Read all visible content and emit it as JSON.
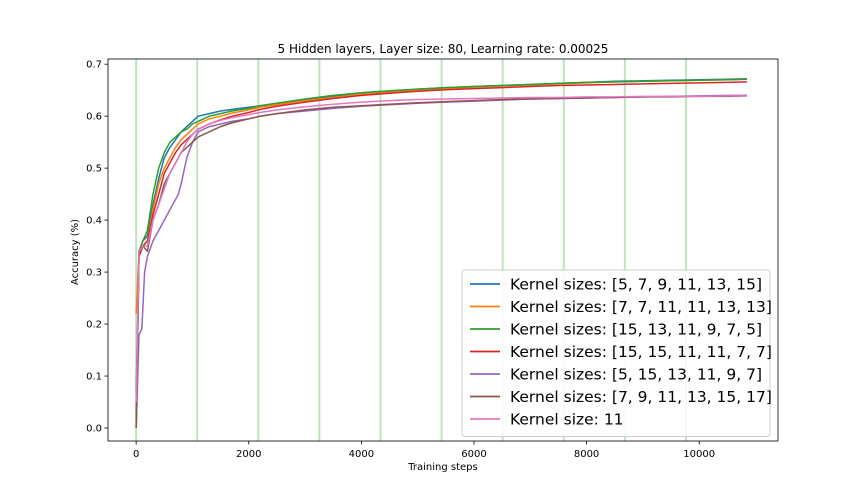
{
  "chart_data": {
    "type": "line",
    "title": "5 Hidden layers, Layer size: 80, Learning rate: 0.00025",
    "xlabel": "Training steps",
    "ylabel": "Accuracy (%)",
    "xlim": [
      -500,
      11400
    ],
    "ylim": [
      -0.025,
      0.71
    ],
    "xticks": [
      0,
      2000,
      4000,
      6000,
      8000,
      10000
    ],
    "xtick_labels": [
      "0",
      "2000",
      "4000",
      "6000",
      "8000",
      "10000"
    ],
    "yticks": [
      0.0,
      0.1,
      0.2,
      0.3,
      0.4,
      0.5,
      0.6,
      0.7
    ],
    "ytick_labels": [
      "0.0",
      "0.1",
      "0.2",
      "0.3",
      "0.4",
      "0.5",
      "0.6",
      "0.7"
    ],
    "grid": false,
    "legend_position": "lower-right",
    "vertical_lines": {
      "color": "#2ca02c",
      "x": [
        0,
        1085,
        2170,
        3255,
        4340,
        5425,
        6510,
        7595,
        8680,
        9765
      ]
    },
    "series": [
      {
        "name": "Kernel sizes: [5, 7, 9, 11, 13, 15]",
        "color": "#1f77b4",
        "x": [
          0,
          50,
          120,
          200,
          300,
          400,
          500,
          600,
          700,
          800,
          900,
          1000,
          1100,
          1300,
          1500,
          1700,
          2000,
          2200,
          2500,
          3000,
          3500,
          4000,
          4500,
          5000,
          5500,
          6000,
          6500,
          7000,
          7500,
          8000,
          8500,
          9000,
          9500,
          10000,
          10500,
          10850
        ],
        "y": [
          0.0,
          0.34,
          0.36,
          0.37,
          0.43,
          0.48,
          0.52,
          0.54,
          0.555,
          0.57,
          0.58,
          0.59,
          0.6,
          0.605,
          0.61,
          0.613,
          0.617,
          0.62,
          0.625,
          0.632,
          0.638,
          0.645,
          0.648,
          0.652,
          0.655,
          0.657,
          0.659,
          0.661,
          0.663,
          0.665,
          0.667,
          0.668,
          0.669,
          0.67,
          0.671,
          0.672
        ]
      },
      {
        "name": "Kernel sizes: [7, 7, 11, 11, 13, 13]",
        "color": "#ff7f0e",
        "x": [
          0,
          50,
          120,
          200,
          300,
          400,
          500,
          600,
          700,
          800,
          900,
          1000,
          1100,
          1300,
          1500,
          1700,
          2000,
          2200,
          2500,
          3000,
          3500,
          4000,
          4500,
          5000,
          5500,
          6000,
          6500,
          7000,
          7500,
          8000,
          8500,
          9000,
          9500,
          10000,
          10500,
          10850
        ],
        "y": [
          0.22,
          0.34,
          0.35,
          0.36,
          0.42,
          0.47,
          0.5,
          0.52,
          0.54,
          0.555,
          0.565,
          0.575,
          0.585,
          0.595,
          0.6,
          0.606,
          0.612,
          0.617,
          0.622,
          0.63,
          0.636,
          0.642,
          0.646,
          0.65,
          0.653,
          0.656,
          0.658,
          0.66,
          0.662,
          0.664,
          0.666,
          0.667,
          0.668,
          0.669,
          0.67,
          0.671
        ]
      },
      {
        "name": "Kernel sizes: [15, 13, 11, 9, 7, 5]",
        "color": "#2ca02c",
        "x": [
          0,
          50,
          120,
          200,
          300,
          400,
          500,
          600,
          700,
          800,
          900,
          1000,
          1100,
          1300,
          1500,
          1700,
          2000,
          2200,
          2500,
          3000,
          3500,
          4000,
          4500,
          5000,
          5500,
          6000,
          6500,
          7000,
          7500,
          8000,
          8500,
          9000,
          9500,
          10000,
          10500,
          10850
        ],
        "y": [
          0.07,
          0.34,
          0.36,
          0.38,
          0.45,
          0.5,
          0.53,
          0.55,
          0.56,
          0.57,
          0.575,
          0.585,
          0.59,
          0.6,
          0.605,
          0.61,
          0.615,
          0.62,
          0.625,
          0.633,
          0.64,
          0.645,
          0.649,
          0.652,
          0.655,
          0.657,
          0.659,
          0.661,
          0.663,
          0.665,
          0.666,
          0.667,
          0.668,
          0.669,
          0.67,
          0.671
        ]
      },
      {
        "name": "Kernel sizes: [15, 15, 11, 11, 7, 7]",
        "color": "#d62728",
        "x": [
          0,
          50,
          120,
          200,
          300,
          400,
          500,
          600,
          700,
          800,
          900,
          1000,
          1100,
          1300,
          1500,
          1700,
          2000,
          2200,
          2500,
          3000,
          3500,
          4000,
          4500,
          5000,
          5500,
          6000,
          6500,
          7000,
          7500,
          8000,
          8500,
          9000,
          9500,
          10000,
          10500,
          10850
        ],
        "y": [
          0.0,
          0.33,
          0.35,
          0.36,
          0.41,
          0.45,
          0.49,
          0.51,
          0.53,
          0.545,
          0.555,
          0.565,
          0.575,
          0.585,
          0.593,
          0.6,
          0.607,
          0.613,
          0.619,
          0.627,
          0.634,
          0.64,
          0.644,
          0.648,
          0.651,
          0.653,
          0.655,
          0.657,
          0.659,
          0.66,
          0.661,
          0.662,
          0.663,
          0.664,
          0.665,
          0.666
        ]
      },
      {
        "name": "Kernel sizes: [5, 15, 13, 11, 9, 7]",
        "color": "#9467bd",
        "x": [
          0,
          50,
          100,
          150,
          200,
          300,
          400,
          500,
          600,
          700,
          750,
          800,
          900,
          1000,
          1100,
          1300,
          1500,
          1700,
          2000,
          2200,
          2500,
          3000,
          3500,
          4000,
          4500,
          5000,
          5500,
          6000,
          6500,
          7000,
          7500,
          8000,
          8500,
          9000,
          9500,
          10000,
          10500,
          10850
        ],
        "y": [
          0.0,
          0.18,
          0.19,
          0.3,
          0.33,
          0.36,
          0.38,
          0.4,
          0.42,
          0.44,
          0.45,
          0.47,
          0.52,
          0.55,
          0.57,
          0.58,
          0.585,
          0.59,
          0.595,
          0.6,
          0.605,
          0.61,
          0.615,
          0.619,
          0.622,
          0.625,
          0.627,
          0.629,
          0.631,
          0.633,
          0.634,
          0.635,
          0.636,
          0.637,
          0.638,
          0.639,
          0.64,
          0.64
        ]
      },
      {
        "name": "Kernel sizes: [7, 9, 11, 13, 15, 17]",
        "color": "#8c564b",
        "x": [
          0,
          50,
          120,
          200,
          300,
          400,
          500,
          600,
          700,
          800,
          900,
          1000,
          1100,
          1300,
          1500,
          1700,
          2000,
          2200,
          2500,
          3000,
          3500,
          4000,
          4500,
          5000,
          5500,
          6000,
          6500,
          7000,
          7500,
          8000,
          8500,
          9000,
          9500,
          10000,
          10500,
          10850
        ],
        "y": [
          0.0,
          0.34,
          0.35,
          0.34,
          0.4,
          0.43,
          0.47,
          0.49,
          0.51,
          0.53,
          0.54,
          0.55,
          0.56,
          0.57,
          0.58,
          0.587,
          0.595,
          0.6,
          0.605,
          0.612,
          0.617,
          0.62,
          0.623,
          0.626,
          0.628,
          0.63,
          0.632,
          0.633,
          0.634,
          0.635,
          0.636,
          0.637,
          0.637,
          0.638,
          0.638,
          0.639
        ]
      },
      {
        "name": "Kernel size: 11",
        "color": "#e377c2",
        "x": [
          0,
          50,
          120,
          200,
          300,
          400,
          500,
          600,
          700,
          800,
          900,
          1000,
          1100,
          1300,
          1500,
          1700,
          2000,
          2200,
          2500,
          3000,
          3500,
          4000,
          4500,
          5000,
          5500,
          6000,
          6500,
          7000,
          7500,
          8000,
          8500,
          9000,
          9500,
          10000,
          10500,
          10850
        ],
        "y": [
          0.05,
          0.34,
          0.35,
          0.35,
          0.4,
          0.43,
          0.46,
          0.49,
          0.51,
          0.53,
          0.55,
          0.565,
          0.575,
          0.585,
          0.592,
          0.597,
          0.603,
          0.607,
          0.612,
          0.618,
          0.623,
          0.627,
          0.63,
          0.632,
          0.633,
          0.634,
          0.635,
          0.636,
          0.636,
          0.637,
          0.637,
          0.638,
          0.638,
          0.638,
          0.639,
          0.639
        ]
      }
    ]
  }
}
